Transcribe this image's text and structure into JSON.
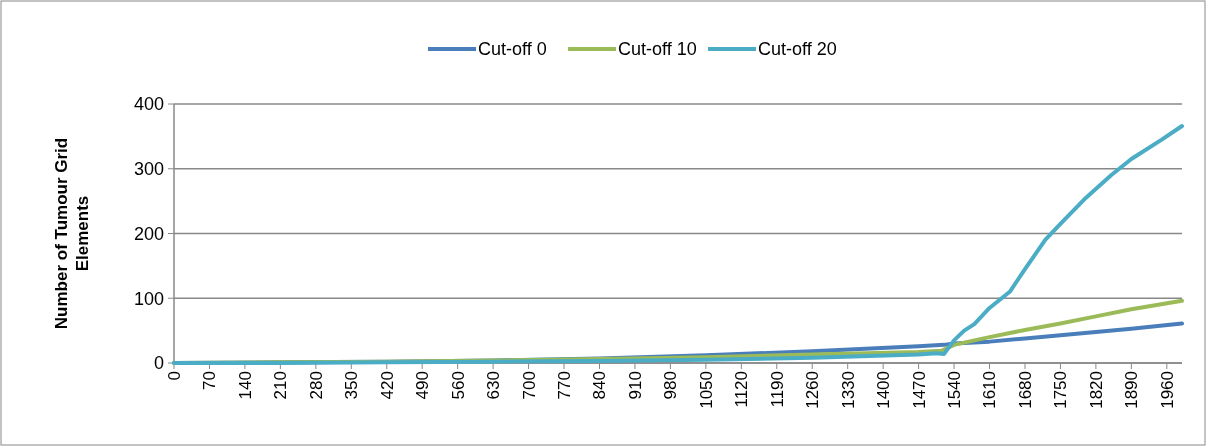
{
  "chart_data": {
    "type": "line",
    "ylabel": "Number of Tumour Grid Elements",
    "xlim": [
      0,
      1990
    ],
    "xticks": [
      0,
      70,
      140,
      210,
      280,
      350,
      420,
      490,
      560,
      630,
      700,
      770,
      840,
      910,
      980,
      1050,
      1120,
      1190,
      1260,
      1330,
      1400,
      1470,
      1540,
      1610,
      1680,
      1750,
      1820,
      1890,
      1960
    ],
    "ylim": [
      0,
      400
    ],
    "yticks": [
      0,
      100,
      200,
      300,
      400
    ],
    "grid": "y",
    "legend": "top",
    "line_style": "solid",
    "series": [
      {
        "name": "Cut-off 0",
        "color": "#4a7ebb",
        "x": [
          0,
          210,
          420,
          630,
          840,
          1050,
          1260,
          1470,
          1520,
          1540,
          1610,
          1680,
          1750,
          1820,
          1890,
          1990
        ],
        "values": [
          0,
          1,
          2,
          4,
          7,
          12,
          18,
          26,
          28,
          30,
          33,
          38,
          43,
          48,
          53,
          61
        ]
      },
      {
        "name": "Cut-off 10",
        "color": "#9bbb59",
        "x": [
          0,
          210,
          420,
          630,
          840,
          1050,
          1260,
          1470,
          1515,
          1540,
          1580,
          1610,
          1680,
          1750,
          1820,
          1890,
          1990
        ],
        "values": [
          0,
          1,
          2,
          4,
          6,
          9,
          13,
          17,
          19,
          28,
          35,
          40,
          51,
          61,
          72,
          83,
          96
        ]
      },
      {
        "name": "Cut-off 20",
        "color": "#4bacc6",
        "x": [
          0,
          210,
          420,
          630,
          840,
          1050,
          1260,
          1470,
          1505,
          1520,
          1540,
          1560,
          1580,
          1610,
          1650,
          1680,
          1720,
          1750,
          1800,
          1850,
          1890,
          1950,
          1990
        ],
        "values": [
          0,
          0,
          1,
          2,
          3,
          5,
          8,
          13,
          15,
          14,
          35,
          50,
          60,
          85,
          110,
          145,
          190,
          215,
          255,
          290,
          315,
          345,
          366
        ]
      }
    ]
  }
}
